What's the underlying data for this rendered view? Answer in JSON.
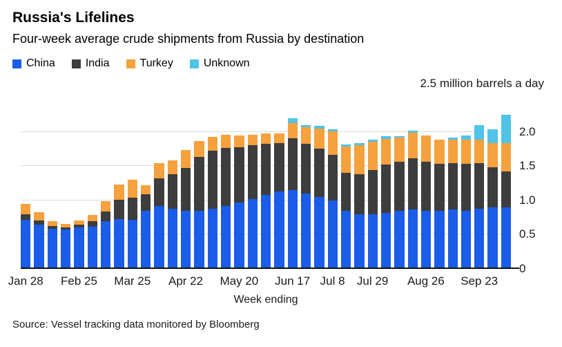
{
  "title": "Russia's Lifelines",
  "subtitle": "Four-week average crude shipments from Russia by destination",
  "source": "Source: Vessel tracking data monitored by Bloomberg",
  "colors": {
    "china": "#1b5ce8",
    "india": "#3d3d3d",
    "turkey": "#f5a13d",
    "unknown": "#4fc3e8",
    "gridline": "#dcdcdc",
    "axis_line": "#111111"
  },
  "chart_data": {
    "type": "bar",
    "stacked": true,
    "title": "Russia's Lifelines",
    "subtitle": "Four-week average crude shipments from Russia by destination",
    "x_axis_title": "Week ending",
    "y_axis_title": "2.5 million barrels a day",
    "ylim": [
      0,
      2.5
    ],
    "y_ticks": [
      0,
      0.5,
      1.0,
      1.5,
      2.0
    ],
    "y_tick_labels": [
      "0",
      "0.5",
      "1.0",
      "1.5",
      "2.0"
    ],
    "grid": true,
    "legend_position": "top-left",
    "categories": [
      "Jan 28",
      "Feb 4",
      "Feb 11",
      "Feb 18",
      "Feb 25",
      "Mar 4",
      "Mar 11",
      "Mar 18",
      "Mar 25",
      "Apr 1",
      "Apr 8",
      "Apr 15",
      "Apr 22",
      "Apr 29",
      "May 6",
      "May 13",
      "May 20",
      "May 27",
      "Jun 3",
      "Jun 10",
      "Jun 17",
      "Jun 24",
      "Jul 1",
      "Jul 8",
      "Jul 15",
      "Jul 22",
      "Jul 29",
      "Aug 5",
      "Aug 12",
      "Aug 19",
      "Aug 26",
      "Sep 2",
      "Sep 9",
      "Sep 16",
      "Sep 23",
      "Sep 30",
      "Oct 7"
    ],
    "x_labels": [
      {
        "label": "Jan 28",
        "index": 0
      },
      {
        "label": "Feb 25",
        "index": 4
      },
      {
        "label": "Mar 25",
        "index": 8
      },
      {
        "label": "Apr 22",
        "index": 12
      },
      {
        "label": "May 20",
        "index": 16
      },
      {
        "label": "Jun 17",
        "index": 20
      },
      {
        "label": "Jul 8",
        "index": 23
      },
      {
        "label": "Jul 29",
        "index": 26
      },
      {
        "label": "Aug 26",
        "index": 30
      },
      {
        "label": "Sep 23",
        "index": 34
      }
    ],
    "series": [
      {
        "name": "China",
        "color": "#1b5ce8",
        "values": [
          0.72,
          0.65,
          0.58,
          0.57,
          0.6,
          0.62,
          0.7,
          0.73,
          0.72,
          0.85,
          0.92,
          0.88,
          0.85,
          0.85,
          0.88,
          0.92,
          0.97,
          1.02,
          1.08,
          1.13,
          1.15,
          1.1,
          1.05,
          1.0,
          0.85,
          0.8,
          0.8,
          0.82,
          0.85,
          0.87,
          0.85,
          0.85,
          0.87,
          0.85,
          0.88,
          0.9,
          0.9
        ]
      },
      {
        "name": "India",
        "color": "#3d3d3d",
        "values": [
          0.08,
          0.06,
          0.05,
          0.04,
          0.05,
          0.08,
          0.14,
          0.28,
          0.32,
          0.24,
          0.4,
          0.5,
          0.62,
          0.78,
          0.84,
          0.84,
          0.8,
          0.78,
          0.74,
          0.7,
          0.76,
          0.72,
          0.7,
          0.66,
          0.55,
          0.58,
          0.64,
          0.7,
          0.71,
          0.74,
          0.71,
          0.68,
          0.67,
          0.68,
          0.66,
          0.58,
          0.52
        ]
      },
      {
        "name": "Turkey",
        "color": "#f5a13d",
        "values": [
          0.15,
          0.12,
          0.07,
          0.05,
          0.06,
          0.09,
          0.15,
          0.22,
          0.26,
          0.13,
          0.22,
          0.2,
          0.26,
          0.24,
          0.21,
          0.2,
          0.18,
          0.16,
          0.16,
          0.15,
          0.22,
          0.25,
          0.3,
          0.35,
          0.38,
          0.42,
          0.41,
          0.38,
          0.36,
          0.38,
          0.39,
          0.36,
          0.35,
          0.36,
          0.35,
          0.36,
          0.42
        ]
      },
      {
        "name": "Unknown",
        "color": "#4fc3e8",
        "values": [
          0,
          0,
          0,
          0,
          0,
          0,
          0,
          0,
          0,
          0,
          0,
          0,
          0,
          0,
          0,
          0,
          0,
          0,
          0,
          0,
          0.07,
          0.03,
          0.04,
          0.03,
          0.04,
          0.04,
          0.04,
          0.04,
          0.02,
          0.03,
          0,
          0,
          0.03,
          0.06,
          0.21,
          0.2,
          0.41
        ]
      }
    ]
  }
}
